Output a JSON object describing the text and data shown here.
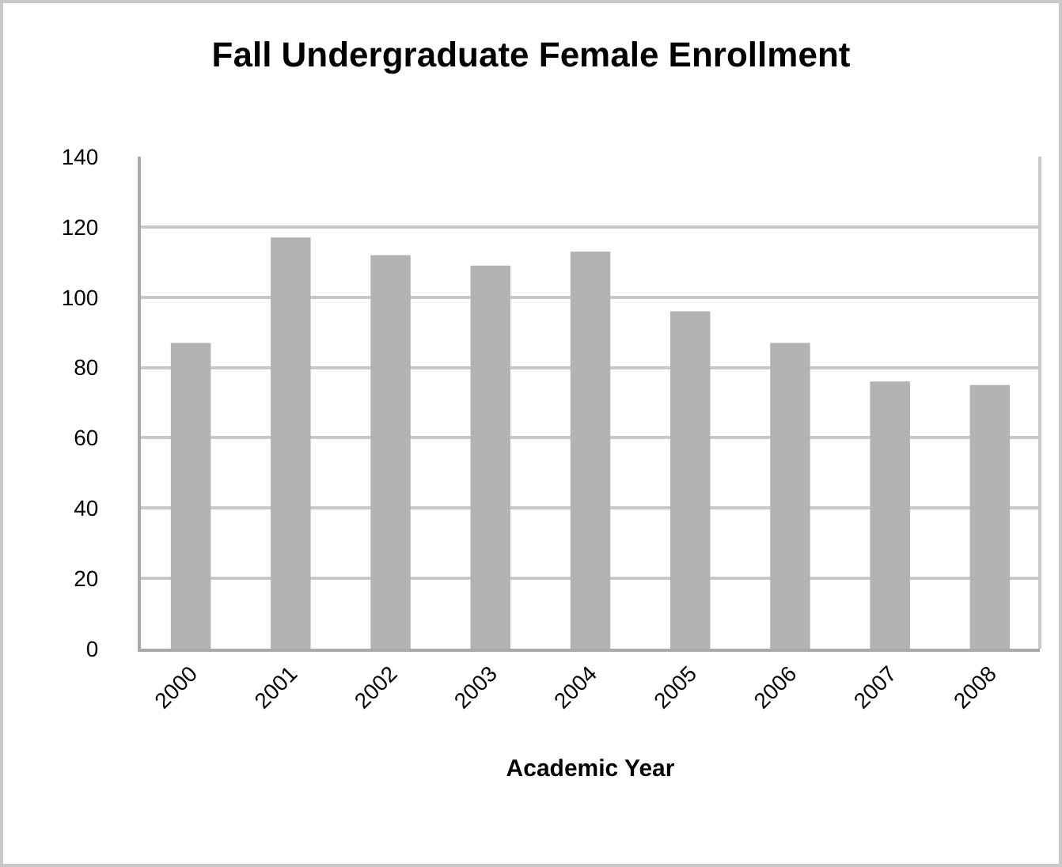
{
  "chart_data": {
    "type": "bar",
    "title": "Fall Undergraduate Female Enrollment",
    "xlabel": "Academic Year",
    "categories": [
      "2000",
      "2001",
      "2002",
      "2003",
      "2004",
      "2005",
      "2006",
      "2007",
      "2008"
    ],
    "values": [
      87,
      117,
      112,
      109,
      113,
      96,
      87,
      76,
      75
    ],
    "color": "#b3b3b3",
    "ylim": [
      0,
      140
    ],
    "yticks": [
      0,
      20,
      40,
      60,
      80,
      100,
      120,
      140
    ],
    "grid": "y"
  }
}
